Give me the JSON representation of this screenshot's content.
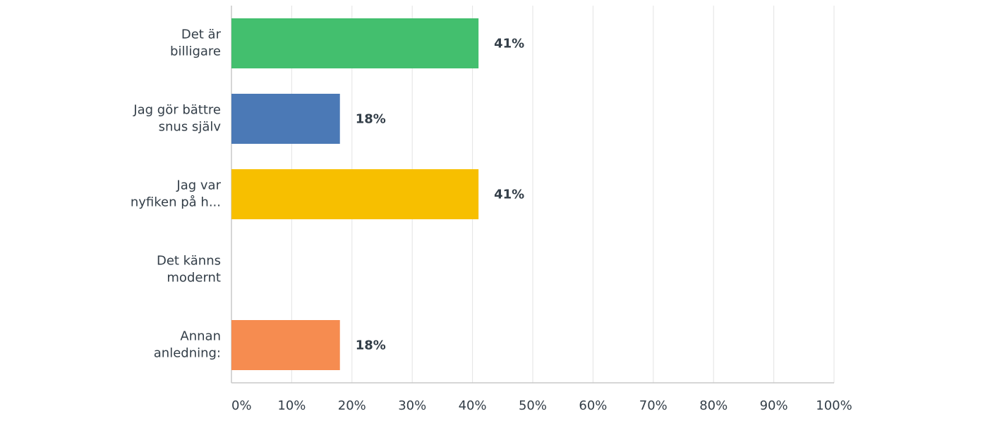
{
  "chart_data": {
    "type": "hbar",
    "categories": [
      "Det är\nbilligare",
      "Jag gör bättre\nsnus själv",
      "Jag var\nnyfiken på h...",
      "Det känns\nmodernt",
      "Annan\nanledning:"
    ],
    "values": [
      41,
      18,
      41,
      0,
      18
    ],
    "value_labels": [
      "41%",
      "18%",
      "41%",
      null,
      "18%"
    ],
    "colors": [
      "#43bf6e",
      "#4b79b6",
      "#f7bf00",
      "#cccccc",
      "#f68c50"
    ],
    "xlim": [
      0,
      100
    ],
    "xticks": [
      {
        "value": 0,
        "label": "0%"
      },
      {
        "value": 10,
        "label": "10%"
      },
      {
        "value": 20,
        "label": "20%"
      },
      {
        "value": 30,
        "label": "30%"
      },
      {
        "value": 40,
        "label": "40%"
      },
      {
        "value": 50,
        "label": "50%"
      },
      {
        "value": 60,
        "label": "60%"
      },
      {
        "value": 70,
        "label": "70%"
      },
      {
        "value": 80,
        "label": "80%"
      },
      {
        "value": 90,
        "label": "90%"
      },
      {
        "value": 100,
        "label": "100%"
      }
    ],
    "grid": true
  }
}
